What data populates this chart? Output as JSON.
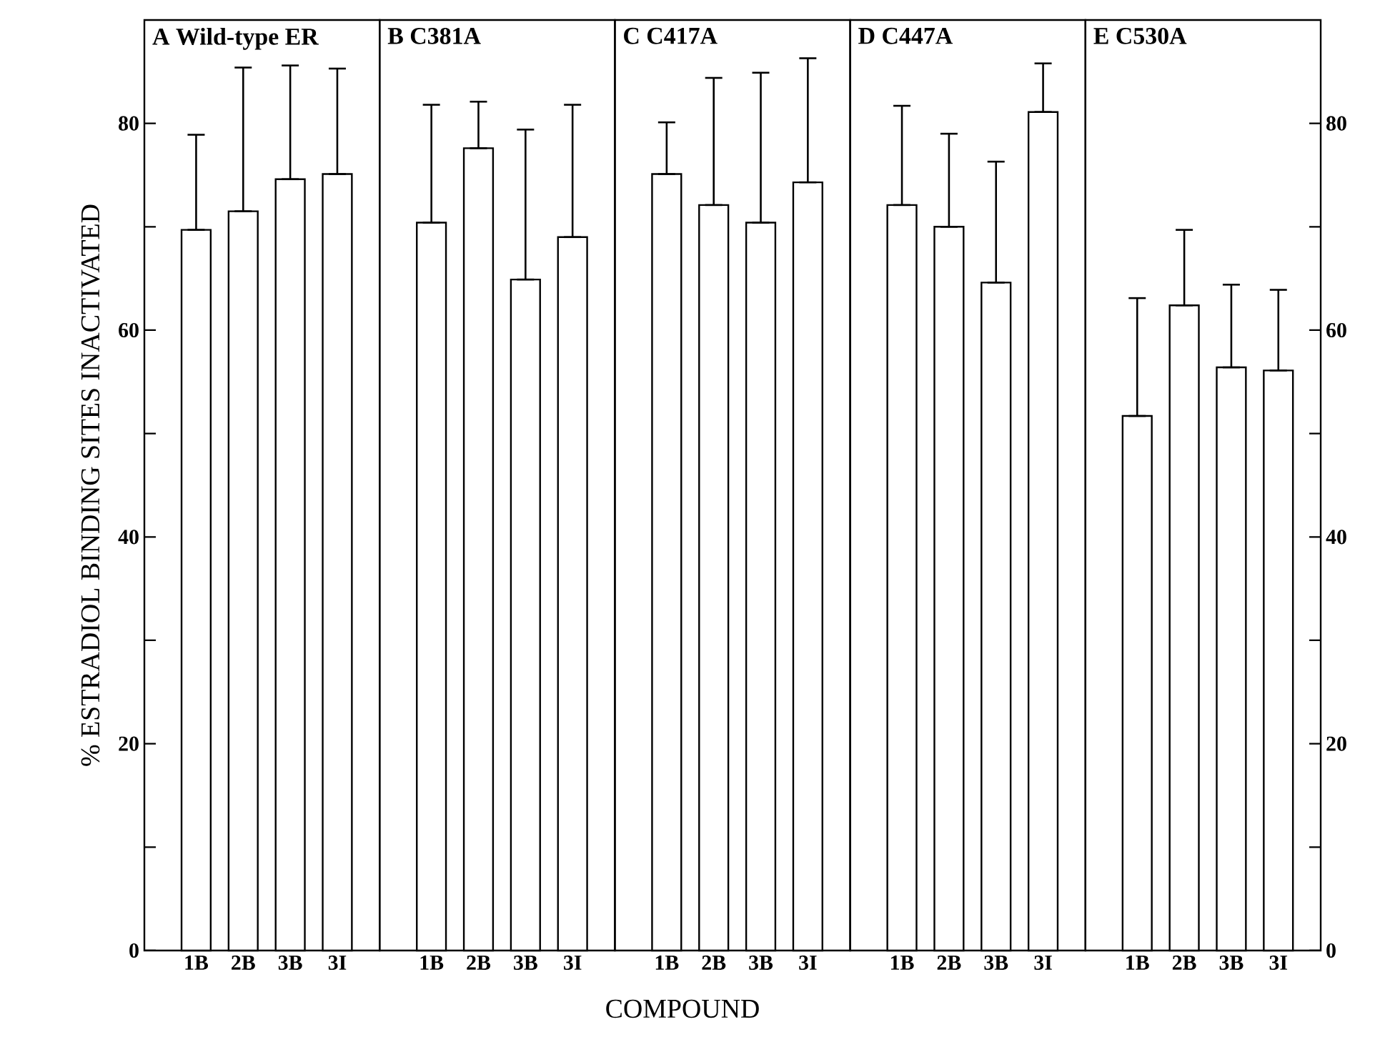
{
  "chart_data": [
    {
      "type": "bar",
      "title": "A Wild-type ER",
      "ylabel": "% ESTRADIOL BINDING SITES INACTIVATED",
      "categories": [
        "1B",
        "2B",
        "3B",
        "3I"
      ],
      "values": [
        69.7,
        71.5,
        74.6,
        75.1
      ],
      "errors": [
        [
          69.7,
          78.9
        ],
        [
          71.5,
          85.4
        ],
        [
          74.6,
          85.6
        ],
        [
          75.1,
          85.3
        ]
      ],
      "color": "#ffffff",
      "ylim": [
        0,
        90
      ],
      "yticks": [
        0,
        {
          "value": 10,
          "label": null
        },
        20,
        {
          "value": 30,
          "label": null
        },
        40,
        {
          "value": 50,
          "label": null
        },
        60,
        {
          "value": 70,
          "label": null
        },
        80
      ]
    },
    {
      "type": "bar",
      "title": "B C381A",
      "categories": [
        "1B",
        "2B",
        "3B",
        "3I"
      ],
      "values": [
        70.4,
        77.6,
        64.9,
        69.0
      ],
      "errors": [
        [
          70.4,
          81.8
        ],
        [
          77.6,
          82.1
        ],
        [
          64.9,
          79.4
        ],
        [
          69.0,
          81.8
        ]
      ],
      "color": "#ffffff",
      "ylim": [
        0,
        90
      ],
      "tick_labels": "x"
    },
    {
      "type": "bar",
      "title": "C C417A",
      "xlabel": "COMPOUND",
      "categories": [
        "1B",
        "2B",
        "3B",
        "3I"
      ],
      "values": [
        75.1,
        72.1,
        70.4,
        74.3
      ],
      "errors": [
        [
          75.1,
          80.1
        ],
        [
          72.1,
          84.4
        ],
        [
          70.4,
          84.9
        ],
        [
          74.3,
          86.3
        ]
      ],
      "color": "#ffffff",
      "ylim": [
        0,
        90
      ],
      "tick_labels": "x"
    },
    {
      "type": "bar",
      "title": "D C447A",
      "categories": [
        "1B",
        "2B",
        "3B",
        "3I"
      ],
      "values": [
        72.1,
        70.0,
        64.6,
        81.1
      ],
      "errors": [
        [
          72.1,
          81.7
        ],
        [
          70.0,
          79.0
        ],
        [
          64.6,
          76.3
        ],
        [
          81.1,
          85.8
        ]
      ],
      "color": "#ffffff",
      "ylim": [
        0,
        90
      ],
      "tick_labels": "x"
    },
    {
      "type": "bar",
      "title": "E C530A",
      "categories": [
        "1B",
        "2B",
        "3B",
        "3I"
      ],
      "values": [
        51.7,
        62.4,
        56.4,
        56.1
      ],
      "errors": [
        [
          51.7,
          63.1
        ],
        [
          62.4,
          69.7
        ],
        [
          56.4,
          64.4
        ],
        [
          56.1,
          63.9
        ]
      ],
      "color": "#ffffff",
      "ylim": [
        0,
        90
      ],
      "yticks": [
        0,
        {
          "value": 10,
          "label": null
        },
        20,
        {
          "value": 30,
          "label": null
        },
        40,
        {
          "value": 50,
          "label": null
        },
        60,
        {
          "value": 70,
          "label": null
        },
        80
      ]
    }
  ]
}
